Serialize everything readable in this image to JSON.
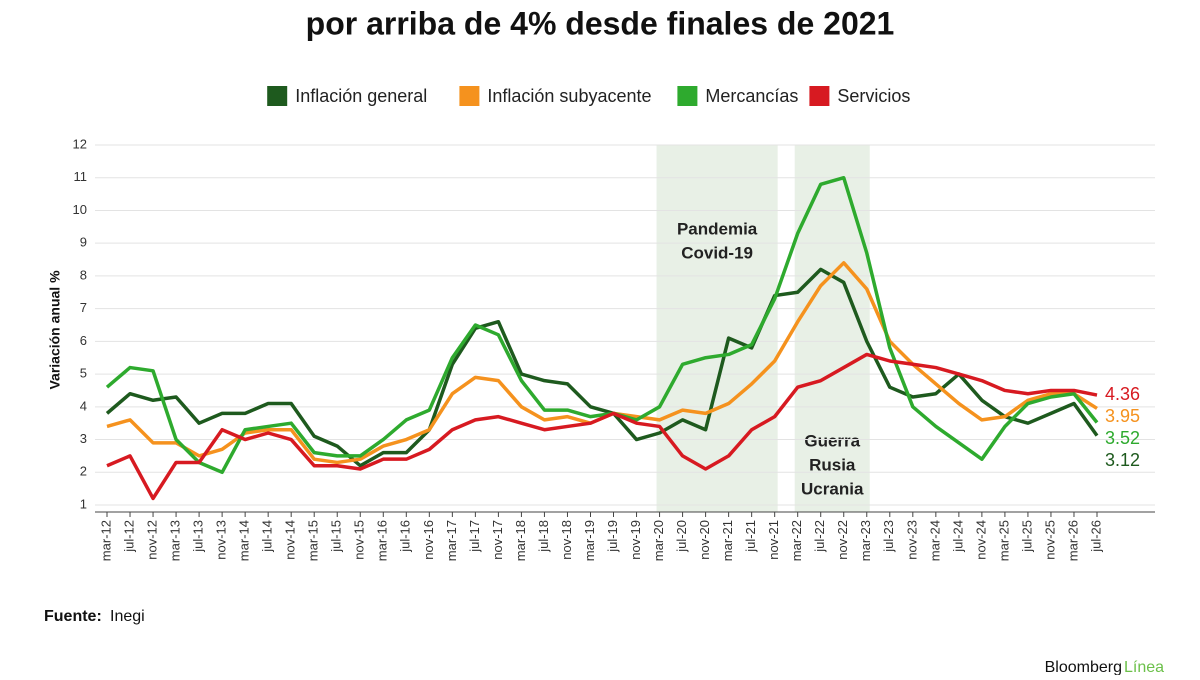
{
  "chart_data": {
    "type": "line",
    "title": "por arriba de 4% desde finales de 2021",
    "y_label": "Variación anual %",
    "source_label": "Fuente:",
    "source": "Inegi",
    "brand": [
      "Bloomberg",
      "Línea"
    ],
    "categories": [
      "mar-12",
      "jul-12",
      "nov-12",
      "mar-13",
      "jul-13",
      "nov-13",
      "mar-14",
      "jul-14",
      "nov-14",
      "mar-15",
      "jul-15",
      "nov-15",
      "mar-16",
      "jul-16",
      "nov-16",
      "mar-17",
      "jul-17",
      "nov-17",
      "mar-18",
      "jul-18",
      "nov-18",
      "mar-19",
      "jul-19",
      "nov-19",
      "mar-20",
      "jul-20",
      "nov-20",
      "mar-21",
      "jul-21",
      "nov-21",
      "mar-22",
      "jul-22",
      "nov-22",
      "mar-23",
      "jul-23",
      "nov-23",
      "mar-24",
      "jul-24",
      "nov-24",
      "mar-25",
      "jul-25",
      "nov-25",
      "mar-26",
      "jul-26"
    ],
    "series": [
      {
        "name": "Inflación general",
        "color": "#1e5a1e",
        "values": [
          3.8,
          4.4,
          4.2,
          4.3,
          3.5,
          3.8,
          3.8,
          4.1,
          4.1,
          3.1,
          2.8,
          2.2,
          2.6,
          2.6,
          3.3,
          5.3,
          6.4,
          6.6,
          5.0,
          4.8,
          4.7,
          4.0,
          3.8,
          3.0,
          3.2,
          3.6,
          3.3,
          6.1,
          5.8,
          7.4,
          7.5,
          8.2,
          7.8,
          6.0,
          4.6,
          4.3,
          4.4,
          5.0,
          4.2,
          3.7,
          3.5,
          3.8,
          4.1,
          3.12
        ]
      },
      {
        "name": "Inflación subyacente",
        "color": "#f5921e",
        "values": [
          3.4,
          3.6,
          2.9,
          2.9,
          2.5,
          2.7,
          3.2,
          3.3,
          3.3,
          2.4,
          2.3,
          2.4,
          2.8,
          3.0,
          3.3,
          4.4,
          4.9,
          4.8,
          4.0,
          3.6,
          3.7,
          3.5,
          3.8,
          3.7,
          3.6,
          3.9,
          3.8,
          4.1,
          4.7,
          5.4,
          6.6,
          7.7,
          8.4,
          7.6,
          6.0,
          5.3,
          4.7,
          4.1,
          3.6,
          3.7,
          4.2,
          4.4,
          4.4,
          3.95
        ]
      },
      {
        "name": "Mercancías",
        "color": "#2eaa2e",
        "values": [
          4.6,
          5.2,
          5.1,
          3.0,
          2.3,
          2.0,
          3.3,
          3.4,
          3.5,
          2.6,
          2.5,
          2.5,
          3.0,
          3.6,
          3.9,
          5.5,
          6.5,
          6.2,
          4.8,
          3.9,
          3.9,
          3.7,
          3.8,
          3.6,
          4.0,
          5.3,
          5.5,
          5.6,
          5.9,
          7.3,
          9.3,
          10.8,
          11.0,
          8.7,
          5.8,
          4.0,
          3.4,
          2.9,
          2.4,
          3.4,
          4.1,
          4.3,
          4.4,
          3.52
        ]
      },
      {
        "name": "Servicios",
        "color": "#d71a21",
        "values": [
          2.2,
          2.5,
          1.2,
          2.3,
          2.3,
          3.3,
          3.0,
          3.2,
          3.0,
          2.2,
          2.2,
          2.1,
          2.4,
          2.4,
          2.7,
          3.3,
          3.6,
          3.7,
          3.5,
          3.3,
          3.4,
          3.5,
          3.8,
          3.5,
          3.4,
          2.5,
          2.1,
          2.5,
          3.3,
          3.7,
          4.6,
          4.8,
          5.2,
          5.6,
          5.4,
          5.3,
          5.2,
          5.0,
          4.8,
          4.5,
          4.4,
          4.5,
          4.5,
          4.36
        ]
      }
    ],
    "ylim": [
      1,
      12
    ],
    "yticks": [
      1,
      2,
      3,
      4,
      5,
      6,
      7,
      8,
      9,
      10,
      11,
      12
    ],
    "grid": true,
    "shaded": [
      {
        "from": "mar-20",
        "to": "nov-21",
        "label": [
          "Pandemia",
          "Covid-19"
        ],
        "label_position": "top"
      },
      {
        "from": "mar-22",
        "to": "mar-23",
        "label": [
          "Guerra",
          "Rusia",
          "Ucrania"
        ],
        "label_position": "bottom"
      }
    ]
  }
}
